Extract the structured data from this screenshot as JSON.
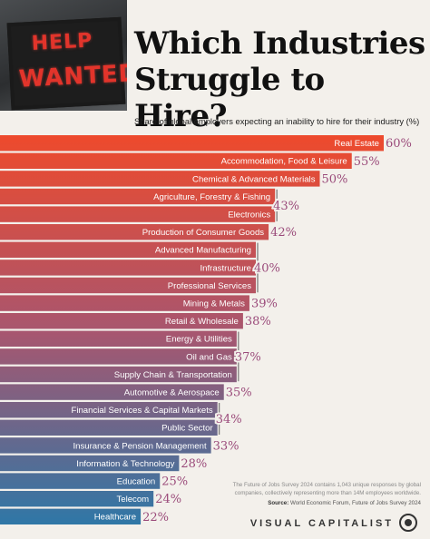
{
  "sign": {
    "line1": "HELP",
    "line2": "WANTED"
  },
  "header": {
    "title_line1": "Which Industries",
    "title_line2": "Struggle to Hire?",
    "subtitle": "Share of global employers expecting an inability to hire for their industry (%)"
  },
  "chart_data": {
    "type": "bar",
    "orientation": "horizontal",
    "title": "Which Industries Struggle to Hire?",
    "subtitle": "Share of global employers expecting an inability to hire for their industry (%)",
    "categories": [
      "Real Estate",
      "Accommodation, Food & Leisure",
      "Chemical & Advanced Materials",
      "Agriculture, Forestry & Fishing",
      "Electronics",
      "Production of Consumer Goods",
      "Advanced Manufacturing",
      "Infrastructure",
      "Professional Services",
      "Mining & Metals",
      "Retail & Wholesale",
      "Energy & Utilities",
      "Oil and Gas",
      "Supply Chain & Transportation",
      "Automotive & Aerospace",
      "Financial Services & Capital Markets",
      "Public Sector",
      "Insurance & Pension Management",
      "Information & Technology",
      "Education",
      "Telecom",
      "Healthcare"
    ],
    "values": [
      60,
      55,
      50,
      43,
      43,
      42,
      40,
      40,
      40,
      39,
      38,
      37,
      37,
      37,
      35,
      34,
      34,
      33,
      28,
      25,
      24,
      22
    ],
    "value_labels": [
      {
        "text": "60%",
        "from": 0,
        "to": 0
      },
      {
        "text": "55%",
        "from": 1,
        "to": 1
      },
      {
        "text": "50%",
        "from": 2,
        "to": 2
      },
      {
        "text": "43%",
        "from": 3,
        "to": 4
      },
      {
        "text": "42%",
        "from": 5,
        "to": 5
      },
      {
        "text": "40%",
        "from": 6,
        "to": 8
      },
      {
        "text": "39%",
        "from": 9,
        "to": 9
      },
      {
        "text": "38%",
        "from": 10,
        "to": 10
      },
      {
        "text": "37%",
        "from": 11,
        "to": 13
      },
      {
        "text": "35%",
        "from": 14,
        "to": 14
      },
      {
        "text": "34%",
        "from": 15,
        "to": 16
      },
      {
        "text": "33%",
        "from": 17,
        "to": 17
      },
      {
        "text": "28%",
        "from": 18,
        "to": 18
      },
      {
        "text": "25%",
        "from": 19,
        "to": 19
      },
      {
        "text": "24%",
        "from": 20,
        "to": 20
      },
      {
        "text": "22%",
        "from": 21,
        "to": 21
      }
    ],
    "xlim": [
      0,
      60
    ],
    "grid": false,
    "colors": {
      "top": "#ee4a2c",
      "bottom": "#2c78a8",
      "value_text": "#9a4a7a"
    }
  },
  "footer": {
    "note": "The Future of Jobs Survey 2024 contains 1,043 unique responses by global companies, collectively representing more than 14M employees worldwide.",
    "source_label": "Source:",
    "source": "World Economic Forum, Future of Jobs Survey 2024",
    "brand": "VISUAL CAPITALIST",
    "brand_icon": "visual-capitalist-logo-icon"
  }
}
